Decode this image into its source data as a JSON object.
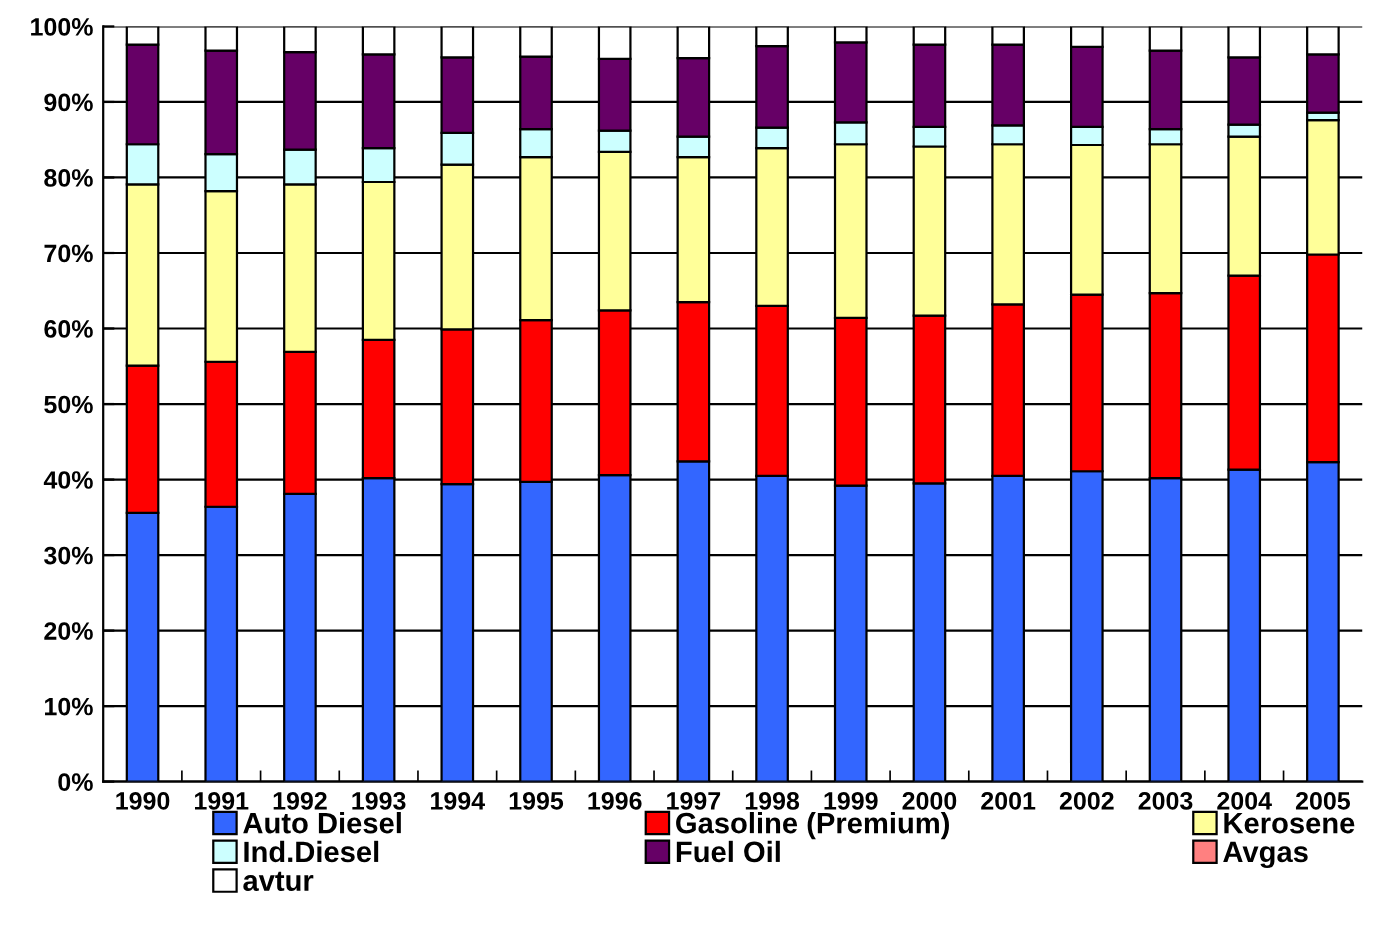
{
  "chart_data": {
    "type": "bar",
    "stacked": true,
    "categories": [
      "1990",
      "1991",
      "1992",
      "1993",
      "1994",
      "1995",
      "1996",
      "1997",
      "1998",
      "1999",
      "2000",
      "2001",
      "2002",
      "2003",
      "2004",
      "2005"
    ],
    "series": [
      {
        "name": "Auto Diesel",
        "color": "#3366ff",
        "values": [
          35.6,
          36.4,
          38.1,
          40.2,
          39.4,
          39.7,
          40.6,
          42.4,
          40.5,
          39.2,
          39.5,
          40.5,
          41.1,
          40.2,
          41.3,
          42.3
        ]
      },
      {
        "name": "Gasoline (Premium)",
        "color": "#ff0000",
        "values": [
          19.5,
          19.2,
          18.8,
          18.3,
          20.5,
          21.4,
          21.8,
          21.1,
          22.5,
          22.2,
          22.2,
          22.7,
          23.4,
          24.5,
          25.7,
          27.5
        ]
      },
      {
        "name": "Kerosene",
        "color": "#ffff99",
        "values": [
          24.0,
          22.6,
          22.2,
          20.9,
          21.8,
          21.6,
          21.0,
          19.2,
          20.9,
          23.0,
          22.4,
          21.2,
          19.8,
          19.7,
          18.4,
          17.8
        ]
      },
      {
        "name": "Ind.Diesel",
        "color": "#ccffff",
        "values": [
          5.3,
          4.9,
          4.6,
          4.5,
          4.2,
          3.7,
          2.8,
          2.7,
          2.7,
          2.9,
          2.6,
          2.5,
          2.4,
          2.0,
          1.6,
          1.0
        ]
      },
      {
        "name": "Fuel Oil",
        "color": "#660066",
        "values": [
          13.2,
          13.7,
          12.9,
          12.4,
          10.0,
          9.6,
          9.5,
          10.4,
          10.8,
          10.6,
          10.9,
          10.7,
          10.6,
          10.4,
          8.9,
          7.7
        ]
      },
      {
        "name": "Avgas",
        "color": "#ff8080",
        "values": [
          null,
          null,
          null,
          null,
          null,
          null,
          null,
          null,
          null,
          null,
          null,
          null,
          null,
          null,
          null,
          null
        ]
      },
      {
        "name": "avtur",
        "color": "#ffffff",
        "values": [
          2.4,
          3.2,
          3.4,
          3.7,
          4.1,
          4.0,
          4.3,
          4.2,
          2.6,
          2.1,
          2.4,
          2.4,
          2.7,
          3.2,
          4.1,
          3.7
        ]
      }
    ],
    "ylim": [
      0,
      100
    ],
    "yticks": [
      {
        "value": 0,
        "label": "0%"
      },
      {
        "value": 10,
        "label": "10%"
      },
      {
        "value": 20,
        "label": "20%"
      },
      {
        "value": 30,
        "label": "30%"
      },
      {
        "value": 40,
        "label": "40%"
      },
      {
        "value": 50,
        "label": "50%"
      },
      {
        "value": 60,
        "label": "60%"
      },
      {
        "value": 70,
        "label": "70%"
      },
      {
        "value": 80,
        "label": "80%"
      },
      {
        "value": 90,
        "label": "90%"
      },
      {
        "value": 100,
        "label": "100%"
      }
    ],
    "grid": "y",
    "legend": "bottom"
  }
}
